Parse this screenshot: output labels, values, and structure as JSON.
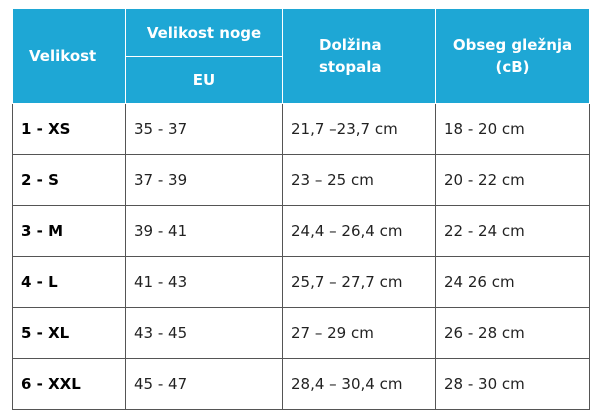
{
  "table": {
    "header": {
      "size": "Velikost",
      "foot_size": "Velikost noge",
      "eu": "EU",
      "foot_length": "Dolžina stopala",
      "ankle": "Obseg gležnja (cB)"
    },
    "rows": [
      [
        "1 - XS",
        "35 - 37",
        "21,7 –23,7 cm",
        "18 - 20 cm"
      ],
      [
        "2 - S",
        "37 - 39",
        "23 – 25 cm",
        "20 - 22 cm"
      ],
      [
        "3 - M",
        "39 - 41",
        "24,4 – 26,4 cm",
        "22 - 24 cm"
      ],
      [
        "4 - L",
        "41 - 43",
        "25,7 – 27,7 cm",
        "24 26 cm"
      ],
      [
        "5 - XL",
        "43 - 45",
        "27 – 29 cm",
        "26 - 28 cm"
      ],
      [
        "6 - XXL",
        "45 - 47",
        "28,4 – 30,4 cm",
        "28 - 30 cm"
      ]
    ]
  }
}
